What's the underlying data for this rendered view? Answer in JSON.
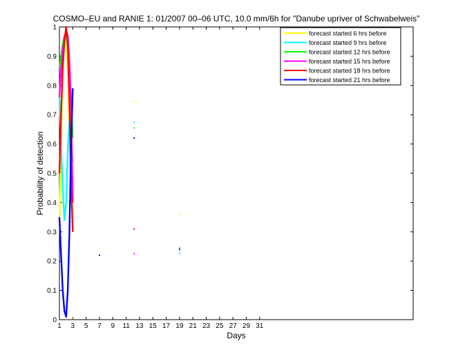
{
  "chart_data": {
    "type": "line",
    "title": "COSMO–EU and RANIE 1: 01/2007 00–06 UTC, 10.0 mm/6h for \"Danube upriver of Schwabelweis\"",
    "xlabel": "Days",
    "ylabel": "Probability of detection",
    "xlim": [
      1,
      54
    ],
    "ylim": [
      0,
      1
    ],
    "x_ticks": [
      1,
      3,
      5,
      7,
      9,
      11,
      13,
      15,
      17,
      19,
      21,
      23,
      25,
      27,
      29,
      31
    ],
    "y_ticks": [
      0,
      0.1,
      0.2,
      0.3,
      0.4,
      0.5,
      0.6,
      0.7,
      0.8,
      0.9,
      1
    ],
    "y_tick_labels": [
      "0",
      "0.1",
      "0.2",
      "0.3",
      "0.4",
      "0.5",
      "0.6",
      "0.7",
      "0.8",
      "0.9",
      "1"
    ],
    "grid": false,
    "legend_position": "top-right",
    "series": [
      {
        "name": "forecast started 6 hrs before",
        "color": "#ffff00",
        "lines": [
          [
            [
              1,
              0.33
            ],
            [
              1.25,
              0.62
            ],
            [
              1.5,
              0.85
            ],
            [
              1.75,
              0.95
            ],
            [
              2,
              0.97
            ],
            [
              2.25,
              0.86
            ],
            [
              2.5,
              0.62
            ],
            [
              2.75,
              0.42
            ],
            [
              3,
              0.37
            ]
          ]
        ],
        "points": [
          [
            12.2,
            0.745
          ],
          [
            19,
            0.36
          ],
          [
            3.1,
            0.005
          ]
        ]
      },
      {
        "name": "forecast started 9 hrs before",
        "color": "#00ffff",
        "lines": [
          [
            [
              1,
              0.76
            ],
            [
              1.25,
              0.6
            ],
            [
              1.5,
              0.45
            ],
            [
              1.75,
              0.34
            ],
            [
              2,
              0.4
            ],
            [
              2.25,
              0.58
            ],
            [
              2.5,
              0.68
            ],
            [
              2.75,
              0.62
            ],
            [
              3,
              0.54
            ]
          ]
        ],
        "points": [
          [
            12.2,
            0.675
          ],
          [
            19,
            0.225
          ]
        ]
      },
      {
        "name": "forecast started 12 hrs before",
        "color": "#00ff00",
        "lines": [
          [
            [
              1,
              0.86
            ],
            [
              1.25,
              0.9
            ],
            [
              1.5,
              0.94
            ],
            [
              1.75,
              0.97
            ],
            [
              2,
              0.98
            ],
            [
              2.25,
              0.93
            ],
            [
              2.5,
              0.85
            ],
            [
              2.75,
              0.76
            ],
            [
              3,
              0.62
            ]
          ]
        ],
        "points": [
          [
            12.2,
            0.655
          ],
          [
            19,
            0.245
          ]
        ]
      },
      {
        "name": "forecast started 15 hrs before",
        "color": "#ff00ff",
        "lines": [
          [
            [
              1,
              0.76
            ],
            [
              1.25,
              0.86
            ],
            [
              1.5,
              0.92
            ],
            [
              1.75,
              0.96
            ],
            [
              2,
              0.99
            ],
            [
              2.25,
              0.97
            ],
            [
              2.5,
              0.88
            ],
            [
              2.75,
              0.72
            ],
            [
              3,
              0.4
            ]
          ]
        ],
        "points": [
          [
            12.2,
            0.225
          ]
        ]
      },
      {
        "name": "forecast started 18 hrs before",
        "color": "#ff0000",
        "lines": [
          [
            [
              1,
              0.5
            ],
            [
              1.25,
              0.7
            ],
            [
              1.5,
              0.86
            ],
            [
              1.75,
              0.95
            ],
            [
              2,
              1.0
            ],
            [
              2.25,
              0.94
            ],
            [
              2.5,
              0.74
            ],
            [
              2.75,
              0.48
            ],
            [
              3,
              0.3
            ]
          ]
        ],
        "points": [
          [
            12.2,
            0.31
          ]
        ]
      },
      {
        "name": "forecast started 21 hrs before",
        "color": "#0000ff",
        "lines": [
          [
            [
              1,
              0.35
            ],
            [
              1.25,
              0.22
            ],
            [
              1.5,
              0.1
            ],
            [
              1.75,
              0.03
            ],
            [
              2,
              0.01
            ],
            [
              2.25,
              0.1
            ],
            [
              2.5,
              0.3
            ],
            [
              2.75,
              0.6
            ],
            [
              3,
              0.79
            ]
          ]
        ],
        "points": [
          [
            7,
            0.22
          ],
          [
            12.2,
            0.62
          ],
          [
            19,
            0.24
          ]
        ]
      }
    ]
  }
}
